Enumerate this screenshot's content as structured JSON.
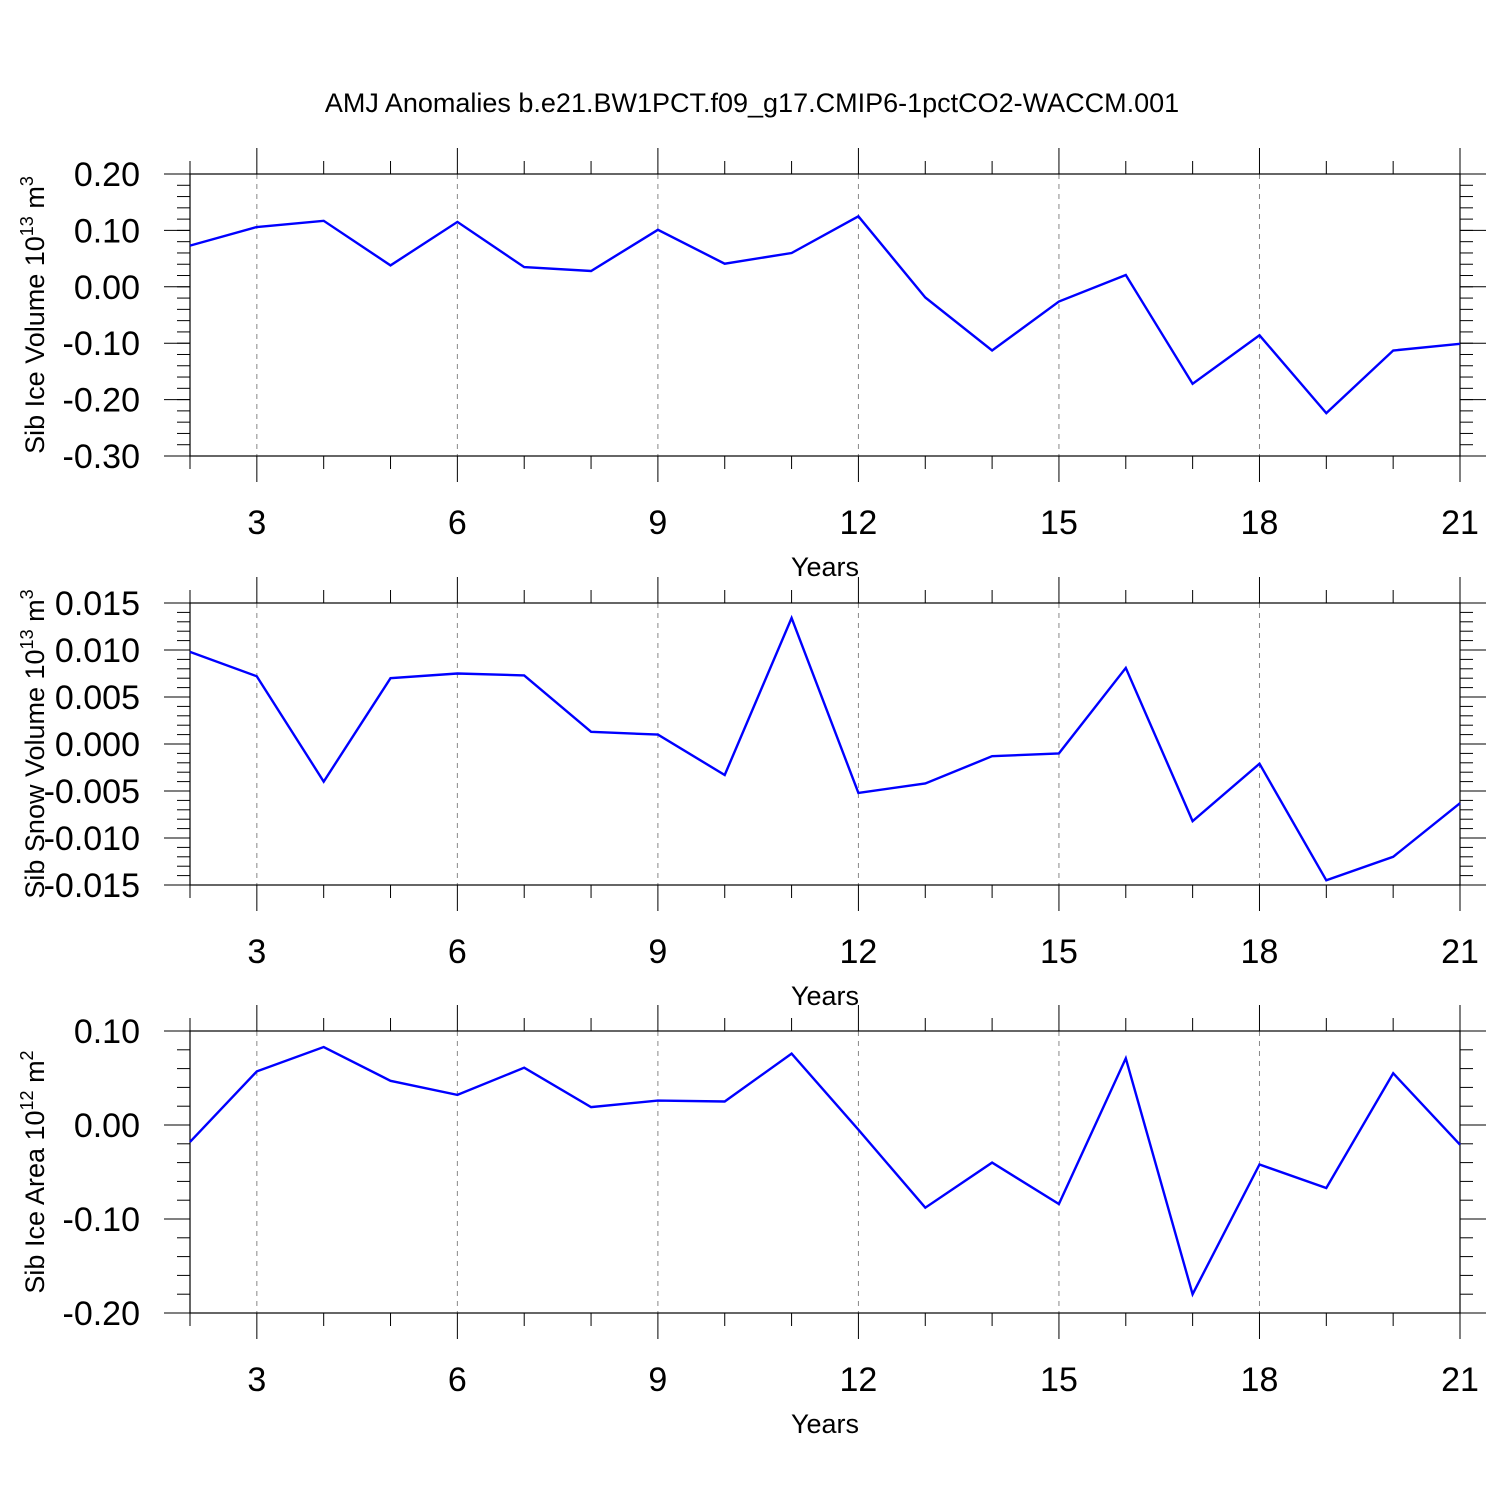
{
  "title": "AMJ Anomalies b.e21.BW1PCT.f09_g17.CMIP6-1pctCO2-WACCM.001",
  "line_color": "#0000ff",
  "chart_data": [
    {
      "type": "line",
      "ylabel": "Sib Ice Volume 10",
      "ylabel_exp": "13",
      "ylabel_unit": " m",
      "ylabel_unit_exp": "3",
      "xlabel": "Years",
      "xlim": [
        2,
        21
      ],
      "ylim": [
        -0.3,
        0.2
      ],
      "xticks": [
        3,
        6,
        9,
        12,
        15,
        18,
        21
      ],
      "xtick_labels": [
        "3",
        "6",
        "9",
        "12",
        "15",
        "18",
        "21"
      ],
      "yticks": [
        0.2,
        0.1,
        0.0,
        -0.1,
        -0.2,
        -0.3
      ],
      "ytick_labels": [
        "0.20",
        "0.10",
        "0.00",
        "-0.10",
        "-0.20",
        "-0.30"
      ],
      "grid": "vertical dashed at major x ticks",
      "x": [
        2,
        3,
        4,
        5,
        6,
        7,
        8,
        9,
        10,
        11,
        12,
        13,
        14,
        15,
        16,
        17,
        18,
        19,
        20,
        21
      ],
      "values": [
        0.073,
        0.106,
        0.117,
        0.038,
        0.115,
        0.035,
        0.028,
        0.101,
        0.041,
        0.06,
        0.125,
        -0.019,
        -0.113,
        -0.026,
        0.021,
        -0.172,
        -0.086,
        -0.224,
        -0.113,
        -0.101
      ]
    },
    {
      "type": "line",
      "ylabel": "Sib Snow Volume 10",
      "ylabel_exp": "13",
      "ylabel_unit": " m",
      "ylabel_unit_exp": "3",
      "xlabel": "Years",
      "xlim": [
        2,
        21
      ],
      "ylim": [
        -0.015,
        0.015
      ],
      "xticks": [
        3,
        6,
        9,
        12,
        15,
        18,
        21
      ],
      "xtick_labels": [
        "3",
        "6",
        "9",
        "12",
        "15",
        "18",
        "21"
      ],
      "yticks": [
        0.015,
        0.01,
        0.005,
        0.0,
        -0.005,
        -0.01,
        -0.015
      ],
      "ytick_labels": [
        "0.015",
        "0.010",
        "0.005",
        "0.000",
        "-0.005",
        "-0.010",
        "-0.015"
      ],
      "grid": "vertical dashed at major x ticks",
      "x": [
        2,
        3,
        4,
        5,
        6,
        7,
        8,
        9,
        10,
        11,
        12,
        13,
        14,
        15,
        16,
        17,
        18,
        19,
        20,
        21
      ],
      "values": [
        0.0098,
        0.0072,
        -0.004,
        0.007,
        0.0075,
        0.0073,
        0.0013,
        0.001,
        -0.0033,
        0.0134,
        -0.0052,
        -0.0042,
        -0.0013,
        -0.001,
        0.0081,
        -0.0082,
        -0.0021,
        -0.0145,
        -0.012,
        -0.0063
      ]
    },
    {
      "type": "line",
      "ylabel": "Sib Ice Area 10",
      "ylabel_exp": "12",
      "ylabel_unit": " m",
      "ylabel_unit_exp": "2",
      "xlabel": "Years",
      "xlim": [
        2,
        21
      ],
      "ylim": [
        -0.2,
        0.1
      ],
      "xticks": [
        3,
        6,
        9,
        12,
        15,
        18,
        21
      ],
      "xtick_labels": [
        "3",
        "6",
        "9",
        "12",
        "15",
        "18",
        "21"
      ],
      "yticks": [
        0.1,
        0.0,
        -0.1,
        -0.2
      ],
      "ytick_labels": [
        "0.10",
        "0.00",
        "-0.10",
        "-0.20"
      ],
      "grid": "vertical dashed at major x ticks",
      "x": [
        2,
        3,
        4,
        5,
        6,
        7,
        8,
        9,
        10,
        11,
        12,
        13,
        14,
        15,
        16,
        17,
        18,
        19,
        20,
        21
      ],
      "values": [
        -0.018,
        0.057,
        0.083,
        0.047,
        0.032,
        0.061,
        0.019,
        0.026,
        0.025,
        0.076,
        -0.005,
        -0.088,
        -0.04,
        -0.084,
        0.071,
        -0.18,
        -0.042,
        -0.067,
        0.055,
        -0.021
      ]
    }
  ]
}
